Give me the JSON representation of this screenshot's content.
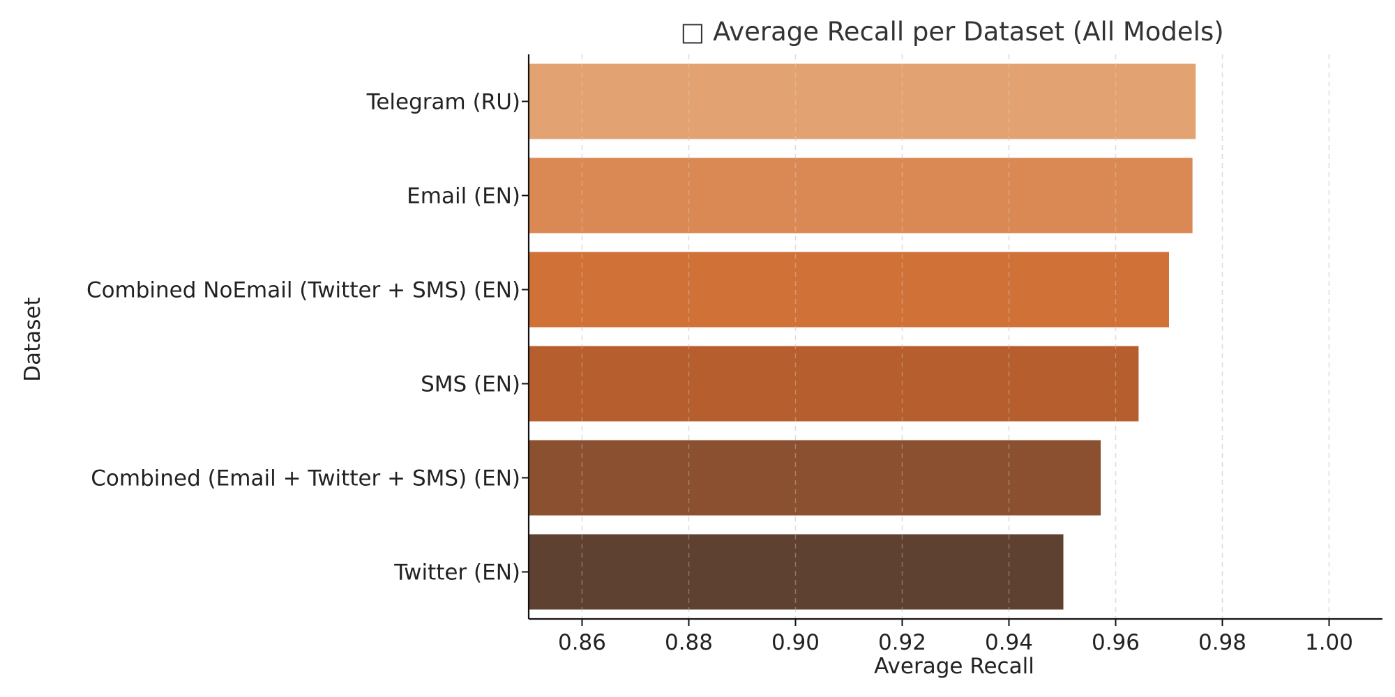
{
  "chart_data": {
    "type": "bar",
    "orientation": "horizontal",
    "title": "□ Average Recall per Dataset (All Models)",
    "xlabel": "Average Recall",
    "ylabel": "Dataset",
    "categories": [
      "Telegram (RU)",
      "Email (EN)",
      "Combined NoEmail (Twitter + SMS) (EN)",
      "SMS (EN)",
      "Combined (Email + Twitter + SMS) (EN)",
      "Twitter (EN)"
    ],
    "values": [
      0.975,
      0.9744,
      0.97,
      0.9643,
      0.9572,
      0.9502
    ],
    "colors": [
      "#E3A271",
      "#DB8954",
      "#D07238",
      "#B65E2D",
      "#8A5030",
      "#5E4130"
    ],
    "xlim": [
      0.85,
      1.01
    ],
    "xticks": [
      0.86,
      0.88,
      0.9,
      0.92,
      0.94,
      0.96,
      0.98,
      1.0
    ],
    "xtick_labels": [
      "0.86",
      "0.88",
      "0.90",
      "0.92",
      "0.94",
      "0.96",
      "0.98",
      "1.00"
    ],
    "grid": "x-dashed",
    "legend": "none"
  }
}
